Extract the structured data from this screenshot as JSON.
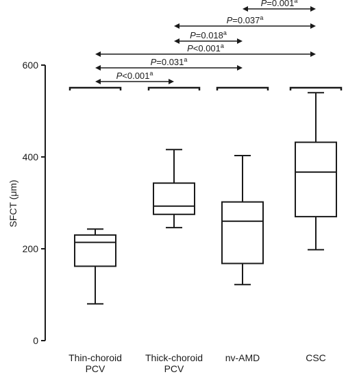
{
  "chart_data": {
    "type": "box",
    "ylabel": "SFCT (μm)",
    "xlabel": "",
    "ylim": [
      0,
      600
    ],
    "yticks": [
      0,
      200,
      400,
      600
    ],
    "grid": false,
    "categories": [
      [
        "Thin-choroid",
        "PCV"
      ],
      [
        "Thick-choroid",
        "PCV"
      ],
      [
        "nv-AMD"
      ],
      [
        "CSC"
      ]
    ],
    "boxes": [
      {
        "min": 80,
        "q1": 162,
        "median": 214,
        "q3": 230,
        "max": 243
      },
      {
        "min": 246,
        "q1": 275,
        "median": 293,
        "q3": 343,
        "max": 416
      },
      {
        "min": 122,
        "q1": 168,
        "median": 260,
        "q3": 302,
        "max": 403
      },
      {
        "min": 198,
        "q1": 270,
        "median": 367,
        "q3": 432,
        "max": 540
      }
    ],
    "comparisons": [
      {
        "from": 2,
        "to": 3,
        "p_prefix": "P",
        "p_value": "=0.001",
        "superscript": "a"
      },
      {
        "from": 1,
        "to": 3,
        "p_prefix": "P",
        "p_value": "=0.037",
        "superscript": "a"
      },
      {
        "from": 1,
        "to": 2,
        "p_prefix": "P",
        "p_value": "=0.018",
        "superscript": "a"
      },
      {
        "from": 0,
        "to": 3,
        "p_prefix": "P",
        "p_value": "<0.001",
        "superscript": "a"
      },
      {
        "from": 0,
        "to": 2,
        "p_prefix": "P",
        "p_value": "=0.031",
        "superscript": "a"
      },
      {
        "from": 0,
        "to": 1,
        "p_prefix": "P",
        "p_value": "<0.001",
        "superscript": "a"
      }
    ]
  }
}
